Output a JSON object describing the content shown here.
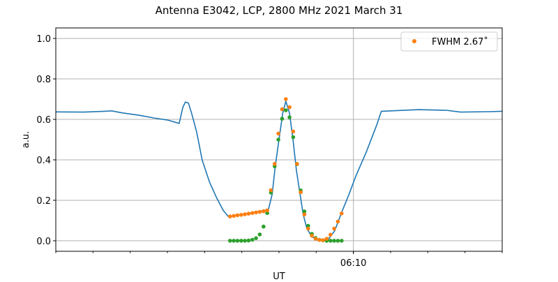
{
  "chart_data": {
    "type": "line",
    "title": "Antenna E3042, LCP, 2800 MHz 2021 March 31",
    "xlabel": "UT",
    "ylabel": "a.u.",
    "xlim": [
      "06:02:00",
      "06:14:00"
    ],
    "ylim": [
      -0.052,
      1.052
    ],
    "x_major_ticks": [
      {
        "value": "06:10:00",
        "label": "06:10"
      }
    ],
    "x_minor_tick_interval_minutes": 1,
    "y_ticks": [
      0.0,
      0.2,
      0.4,
      0.6,
      0.8,
      1.0
    ],
    "y_tick_labels": [
      "0.0",
      "0.2",
      "0.4",
      "0.6",
      "0.8",
      "1.0"
    ],
    "grid": true,
    "legend": {
      "placement": "top-right",
      "entries": [
        "FWHM 2.67˚"
      ]
    },
    "colors": {
      "line": "#1f77b4",
      "fit_orange": "#ff7f0e",
      "fit_green": "#2ca02c"
    },
    "series": [
      {
        "type": "line",
        "color": "#1f77b4",
        "x": [
          "06:02:00",
          "06:02:45",
          "06:03:19",
          "06:03:30",
          "06:03:47",
          "06:04:15",
          "06:04:38",
          "06:05:00",
          "06:05:19",
          "06:05:25",
          "06:05:29",
          "06:05:34",
          "06:05:39",
          "06:05:47",
          "06:05:56",
          "06:06:08",
          "06:06:19",
          "06:06:30",
          "06:06:39",
          "06:06:58",
          "06:07:21",
          "06:07:43",
          "06:07:49",
          "06:07:54",
          "06:08:00",
          "06:08:06",
          "06:08:11",
          "06:08:17",
          "06:08:23",
          "06:08:28",
          "06:08:34",
          "06:08:39",
          "06:08:45",
          "06:08:53",
          "06:09:02",
          "06:09:19",
          "06:09:30",
          "06:09:41",
          "06:09:53",
          "06:10:04",
          "06:10:21",
          "06:10:38",
          "06:10:45",
          "06:11:45",
          "06:12:30",
          "06:12:53",
          "06:13:38",
          "06:14:00"
        ],
        "y": [
          0.637,
          0.636,
          0.64,
          0.642,
          0.632,
          0.62,
          0.607,
          0.597,
          0.58,
          0.66,
          0.686,
          0.68,
          0.63,
          0.54,
          0.4,
          0.29,
          0.215,
          0.15,
          0.117,
          0.128,
          0.14,
          0.155,
          0.23,
          0.37,
          0.5,
          0.63,
          0.69,
          0.63,
          0.49,
          0.35,
          0.23,
          0.13,
          0.06,
          0.02,
          0.005,
          0.005,
          0.05,
          0.14,
          0.23,
          0.32,
          0.44,
          0.575,
          0.64,
          0.648,
          0.645,
          0.636,
          0.638,
          0.64
        ]
      },
      {
        "type": "scatter",
        "name": "FWHM 2.67˚",
        "color": "#ff7f0e",
        "x": [
          "06:06:41",
          "06:06:47",
          "06:06:53",
          "06:06:59",
          "06:07:05",
          "06:07:11",
          "06:07:17",
          "06:07:23",
          "06:07:29",
          "06:07:35",
          "06:07:41",
          "06:07:47",
          "06:07:53",
          "06:07:59",
          "06:08:05",
          "06:08:11",
          "06:08:17",
          "06:08:23",
          "06:08:29",
          "06:08:35",
          "06:08:41",
          "06:08:47",
          "06:08:53",
          "06:08:59",
          "06:09:05",
          "06:09:11",
          "06:09:17",
          "06:09:23",
          "06:09:29",
          "06:09:35",
          "06:09:41"
        ],
        "y": [
          0.12,
          0.123,
          0.126,
          0.128,
          0.131,
          0.134,
          0.137,
          0.14,
          0.143,
          0.146,
          0.15,
          0.25,
          0.38,
          0.53,
          0.65,
          0.7,
          0.66,
          0.54,
          0.38,
          0.24,
          0.13,
          0.06,
          0.025,
          0.01,
          0.004,
          0.003,
          0.01,
          0.03,
          0.06,
          0.095,
          0.135
        ]
      },
      {
        "type": "scatter",
        "color": "#2ca02c",
        "x": [
          "06:06:41",
          "06:06:47",
          "06:06:53",
          "06:06:59",
          "06:07:05",
          "06:07:11",
          "06:07:17",
          "06:07:23",
          "06:07:29",
          "06:07:35",
          "06:07:41",
          "06:07:47",
          "06:07:53",
          "06:07:59",
          "06:08:05",
          "06:08:11",
          "06:08:17",
          "06:08:23",
          "06:08:29",
          "06:08:35",
          "06:08:41",
          "06:08:47",
          "06:08:53",
          "06:08:59",
          "06:09:05",
          "06:09:11",
          "06:09:17",
          "06:09:23",
          "06:09:29",
          "06:09:35",
          "06:09:41"
        ],
        "y": [
          0.0,
          0.0,
          0.0,
          0.0,
          0.0,
          0.001,
          0.005,
          0.013,
          0.031,
          0.07,
          0.137,
          0.238,
          0.368,
          0.5,
          0.603,
          0.645,
          0.61,
          0.512,
          0.379,
          0.249,
          0.145,
          0.074,
          0.034,
          0.014,
          0.005,
          0.002,
          0.0,
          0.0,
          0.0,
          0.0,
          0.0
        ]
      }
    ]
  }
}
